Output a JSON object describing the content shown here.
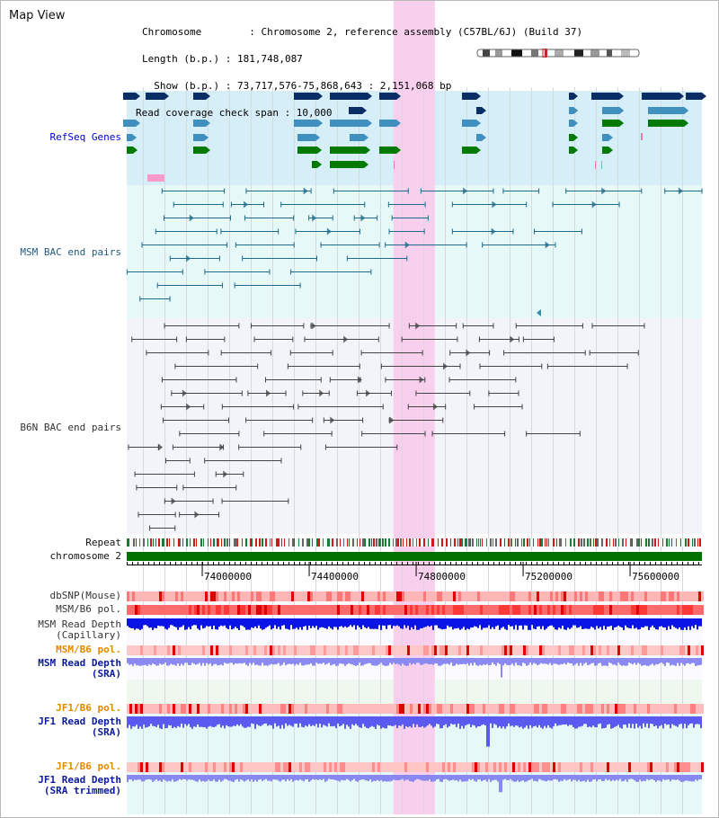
{
  "title": "Map View",
  "header": {
    "chromosome_line": "Chromosome        : Chromosome 2, reference assembly (C57BL/6J) (Build 37)",
    "length_line": "Length (b.p.) : 181,748,087",
    "show_line": "  Show (b.p.) : 73,717,576-75,868,643 : 2,151,068 bp",
    "coverage_line": "Read coverage check span : 10,000"
  },
  "tracks": {
    "refseq": {
      "label": "RefSeq Genes",
      "color": "#0000cc"
    },
    "msm_bac": {
      "label": "MSM BAC end pairs",
      "color": "#1e5a80"
    },
    "b6n_bac": {
      "label": "B6N BAC end pairs",
      "color": "#333333"
    },
    "repeat": {
      "label": "Repeat"
    },
    "chromosome": {
      "label": "chromosome 2"
    },
    "dbsnp": {
      "label": "dbSNP(Mouse)"
    },
    "msm_b6_pol": {
      "label": "MSM/B6 pol."
    },
    "msm_depth_cap": {
      "label": "MSM Read Depth",
      "label2": "(Capillary)"
    },
    "msm_b6_pol2": {
      "label": "MSM/B6 pol."
    },
    "msm_depth_sra": {
      "label": "MSM Read Depth",
      "label2": "(SRA)"
    },
    "jf1_b6_pol": {
      "label": "JF1/B6 pol."
    },
    "jf1_depth_sra": {
      "label": "JF1 Read Depth",
      "label2": "(SRA)"
    },
    "jf1_b6_pol2": {
      "label": "JF1/B6 pol."
    },
    "jf1_depth_trim": {
      "label": "JF1 Read Depth",
      "label2": "(SRA trimmed)"
    }
  },
  "axis": {
    "start_bp": 73717576,
    "end_bp": 75868643,
    "ticks": [
      74000000,
      74400000,
      74800000,
      75200000,
      75600000
    ],
    "tick_labels": [
      "74000000",
      "74400000",
      "74800000",
      "75200000",
      "75600000"
    ]
  },
  "highlight": {
    "start_bp": 74715000,
    "end_bp": 74870000,
    "color": "#f8d0ee"
  },
  "colors": {
    "refseq_bg": "#d6eef8",
    "msm_bg": "#e6f8f8",
    "b6n_bg": "#f3f3fa",
    "gene_dark": "#0a2d66",
    "gene_mid": "#3f8fbf",
    "gene_green": "#007a00",
    "chromosome_bar": "#007000",
    "depth_blue": "#0a14e6",
    "depth_light": "#7a7af0",
    "depth_jf1": "#5050ea",
    "pol_red": "#ff4a4a",
    "pol_pink": "#ffb0b0",
    "label_orange": "#e08a00",
    "label_navy": "#0a1a9a"
  }
}
